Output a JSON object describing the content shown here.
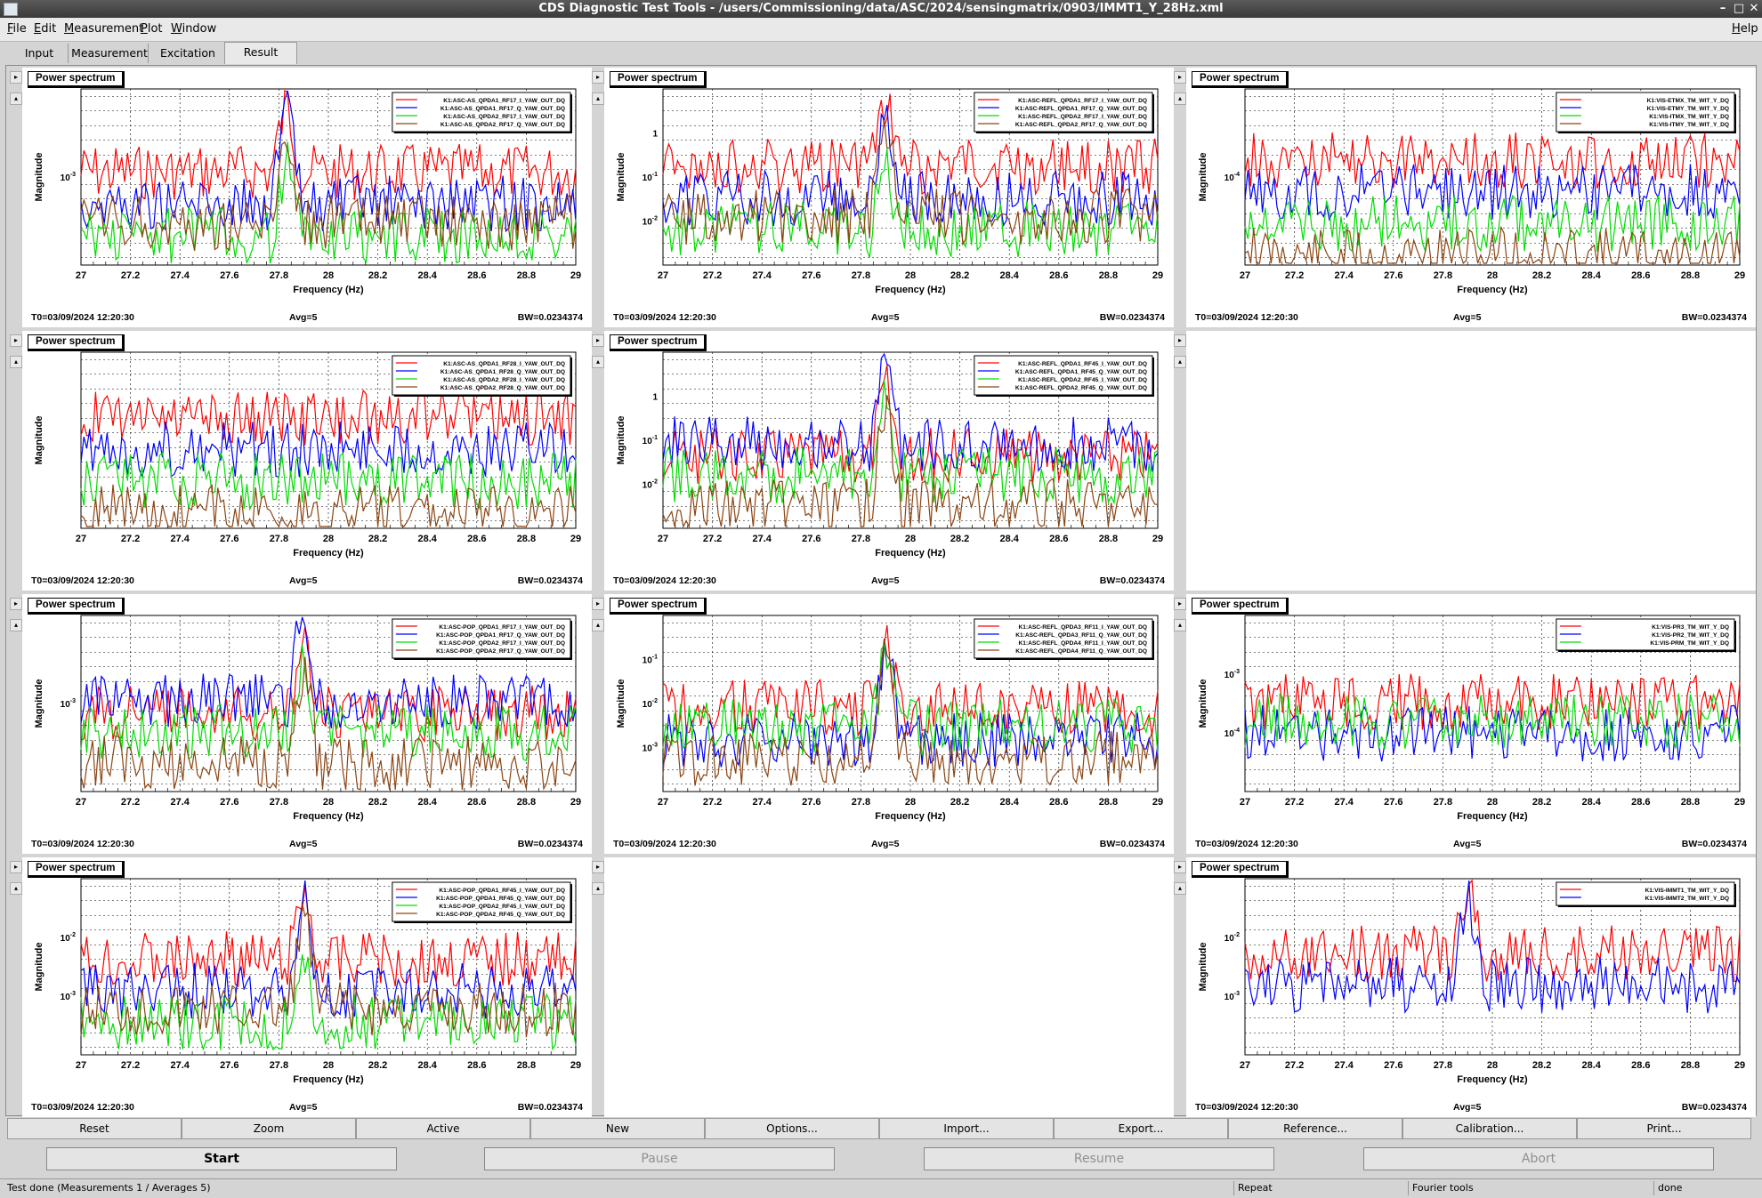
{
  "window": {
    "title": "CDS Diagnostic Test Tools - /users/Commissioning/data/ASC/2024/sensingmatrix/0903/IMMT1_Y_28Hz.xml"
  },
  "menu": [
    "File",
    "Edit",
    "Measurement",
    "Plot",
    "Window"
  ],
  "menu_help": "Help",
  "tabs": [
    {
      "label": "Input"
    },
    {
      "label": "Measurement"
    },
    {
      "label": "Excitation"
    },
    {
      "label": "Result",
      "active": true
    }
  ],
  "panel_title": "Power spectrum",
  "axis": {
    "xlabel": "Frequency (Hz)",
    "ylabel": "Magnitude",
    "xticks": [
      "27",
      "27.2",
      "27.4",
      "27.6",
      "27.8",
      "28",
      "28.2",
      "28.4",
      "28.6",
      "28.8",
      "29"
    ],
    "xlim": [
      27,
      29
    ]
  },
  "footer": {
    "t0": "T0=03/09/2024 12:20:30",
    "avg": "Avg=5",
    "bw": "BW=0.0234374"
  },
  "colors": {
    "red": "#ff0000",
    "blue": "#0000ff",
    "green": "#00e000",
    "brown": "#8b4513"
  },
  "chart_data": [
    {
      "type": "line",
      "title": "Power spectrum",
      "ylog": true,
      "yticks": [
        "10^-3"
      ],
      "peak_hz": 27.83,
      "series": [
        {
          "name": "K1:ASC-AS_QPDA1_RF17_I_YAW_OUT_DQ",
          "color": "red"
        },
        {
          "name": "K1:ASC-AS_QPDA1_RF17_Q_YAW_OUT_DQ",
          "color": "blue"
        },
        {
          "name": "K1:ASC-AS_QPDA2_RF17_I_YAW_OUT_DQ",
          "color": "green"
        },
        {
          "name": "K1:ASC-AS_QPDA2_RF17_Q_YAW_OUT_DQ",
          "color": "brown"
        }
      ]
    },
    {
      "type": "line",
      "title": "Power spectrum",
      "ylog": true,
      "yticks": [
        "1",
        "10^-1",
        "10^-2"
      ],
      "peak_hz": 27.9,
      "series": [
        {
          "name": "K1:ASC-REFL_QPDA1_RF17_I_YAW_OUT_DQ",
          "color": "red"
        },
        {
          "name": "K1:ASC-REFL_QPDA1_RF17_Q_YAW_OUT_DQ",
          "color": "blue"
        },
        {
          "name": "K1:ASC-REFL_QPDA2_RF17_I_YAW_OUT_DQ",
          "color": "green"
        },
        {
          "name": "K1:ASC-REFL_QPDA2_RF17_Q_YAW_OUT_DQ",
          "color": "brown"
        }
      ]
    },
    {
      "type": "line",
      "title": "Power spectrum",
      "ylog": true,
      "yticks": [
        "10^-4"
      ],
      "series": [
        {
          "name": "K1:VIS-ETMX_TM_WIT_Y_DQ",
          "color": "red"
        },
        {
          "name": "K1:VIS-ETMY_TM_WIT_Y_DQ",
          "color": "blue"
        },
        {
          "name": "K1:VIS-ITMX_TM_WIT_Y_DQ",
          "color": "green"
        },
        {
          "name": "K1:VIS-ITMY_TM_WIT_Y_DQ",
          "color": "brown"
        }
      ]
    },
    {
      "type": "line",
      "title": "Power spectrum",
      "ylog": true,
      "yticks": [],
      "series": [
        {
          "name": "K1:ASC-AS_QPDA1_RF28_I_YAW_OUT_DQ",
          "color": "red"
        },
        {
          "name": "K1:ASC-AS_QPDA1_RF28_Q_YAW_OUT_DQ",
          "color": "blue"
        },
        {
          "name": "K1:ASC-AS_QPDA2_RF28_I_YAW_OUT_DQ",
          "color": "green"
        },
        {
          "name": "K1:ASC-AS_QPDA2_RF28_Q_YAW_OUT_DQ",
          "color": "brown"
        }
      ]
    },
    {
      "type": "line",
      "title": "Power spectrum",
      "ylog": true,
      "yticks": [
        "1",
        "10^-1",
        "10^-2"
      ],
      "peak_hz": 27.9,
      "series": [
        {
          "name": "K1:ASC-REFL_QPDA1_RF45_I_YAW_OUT_DQ",
          "color": "red"
        },
        {
          "name": "K1:ASC-REFL_QPDA1_RF45_Q_YAW_OUT_DQ",
          "color": "blue"
        },
        {
          "name": "K1:ASC-REFL_QPDA2_RF45_I_YAW_OUT_DQ",
          "color": "green"
        },
        {
          "name": "K1:ASC-REFL_QPDA2_RF45_Q_YAW_OUT_DQ",
          "color": "brown"
        }
      ]
    },
    {
      "type": "line",
      "title": "Power spectrum",
      "ylog": true,
      "yticks": [
        "10^-3"
      ],
      "peak_hz": 27.9,
      "series": [
        {
          "name": "K1:ASC-POP_QPDA1_RF17_I_YAW_OUT_DQ",
          "color": "red"
        },
        {
          "name": "K1:ASC-POP_QPDA1_RF17_Q_YAW_OUT_DQ",
          "color": "blue"
        },
        {
          "name": "K1:ASC-POP_QPDA2_RF17_I_YAW_OUT_DQ",
          "color": "green"
        },
        {
          "name": "K1:ASC-POP_QPDA2_RF17_Q_YAW_OUT_DQ",
          "color": "brown"
        }
      ]
    },
    {
      "type": "line",
      "title": "Power spectrum",
      "ylog": true,
      "yticks": [
        "10^-1",
        "10^-2",
        "10^-3"
      ],
      "peak_hz": 27.9,
      "series": [
        {
          "name": "K1:ASC-REFL_QPDA3_RF11_I_YAW_OUT_DQ",
          "color": "red"
        },
        {
          "name": "K1:ASC-REFL_QPDA3_RF11_Q_YAW_OUT_DQ",
          "color": "blue"
        },
        {
          "name": "K1:ASC-REFL_QPDA4_RF11_I_YAW_OUT_DQ",
          "color": "green"
        },
        {
          "name": "K1:ASC-REFL_QPDA4_RF11_Q_YAW_OUT_DQ",
          "color": "brown"
        }
      ]
    },
    {
      "type": "line",
      "title": "Power spectrum",
      "ylog": true,
      "yticks": [
        "10^-3",
        "10^-4"
      ],
      "series": [
        {
          "name": "K1:VIS-PR3_TM_WIT_Y_DQ",
          "color": "red"
        },
        {
          "name": "K1:VIS-PR2_TM_WIT_Y_DQ",
          "color": "blue"
        },
        {
          "name": "K1:VIS-PRM_TM_WIT_Y_DQ",
          "color": "green"
        }
      ]
    },
    {
      "type": "line",
      "title": "Power spectrum",
      "ylog": true,
      "yticks": [
        "10^-2",
        "10^-3"
      ],
      "peak_hz": 27.9,
      "series": [
        {
          "name": "K1:ASC-POP_QPDA1_RF45_I_YAW_OUT_DQ",
          "color": "red"
        },
        {
          "name": "K1:ASC-POP_QPDA1_RF45_Q_YAW_OUT_DQ",
          "color": "blue"
        },
        {
          "name": "K1:ASC-POP_QPDA2_RF45_I_YAW_OUT_DQ",
          "color": "green"
        },
        {
          "name": "K1:ASC-POP_QPDA2_RF45_Q_YAW_OUT_DQ",
          "color": "brown"
        }
      ]
    },
    {
      "type": "line",
      "title": "Power spectrum",
      "ylog": true,
      "yticks": [
        "10^-2",
        "10^-3"
      ],
      "peak_hz": 27.9,
      "series": [
        {
          "name": "K1:VIS-IMMT1_TM_WIT_Y_DQ",
          "color": "red"
        },
        {
          "name": "K1:VIS-IMMT2_TM_WIT_Y_DQ",
          "color": "blue"
        }
      ]
    }
  ],
  "buttons": [
    "Reset",
    "Zoom",
    "Active",
    "New",
    "Options...",
    "Import...",
    "Export...",
    "Reference...",
    "Calibration...",
    "Print..."
  ],
  "actions": [
    {
      "label": "Start",
      "enabled": true
    },
    {
      "label": "Pause",
      "enabled": false
    },
    {
      "label": "Resume",
      "enabled": false
    },
    {
      "label": "Abort",
      "enabled": false
    }
  ],
  "status": [
    "Test done (Measurements 1 / Averages 5)",
    "Repeat",
    "Fourier tools",
    "done"
  ]
}
